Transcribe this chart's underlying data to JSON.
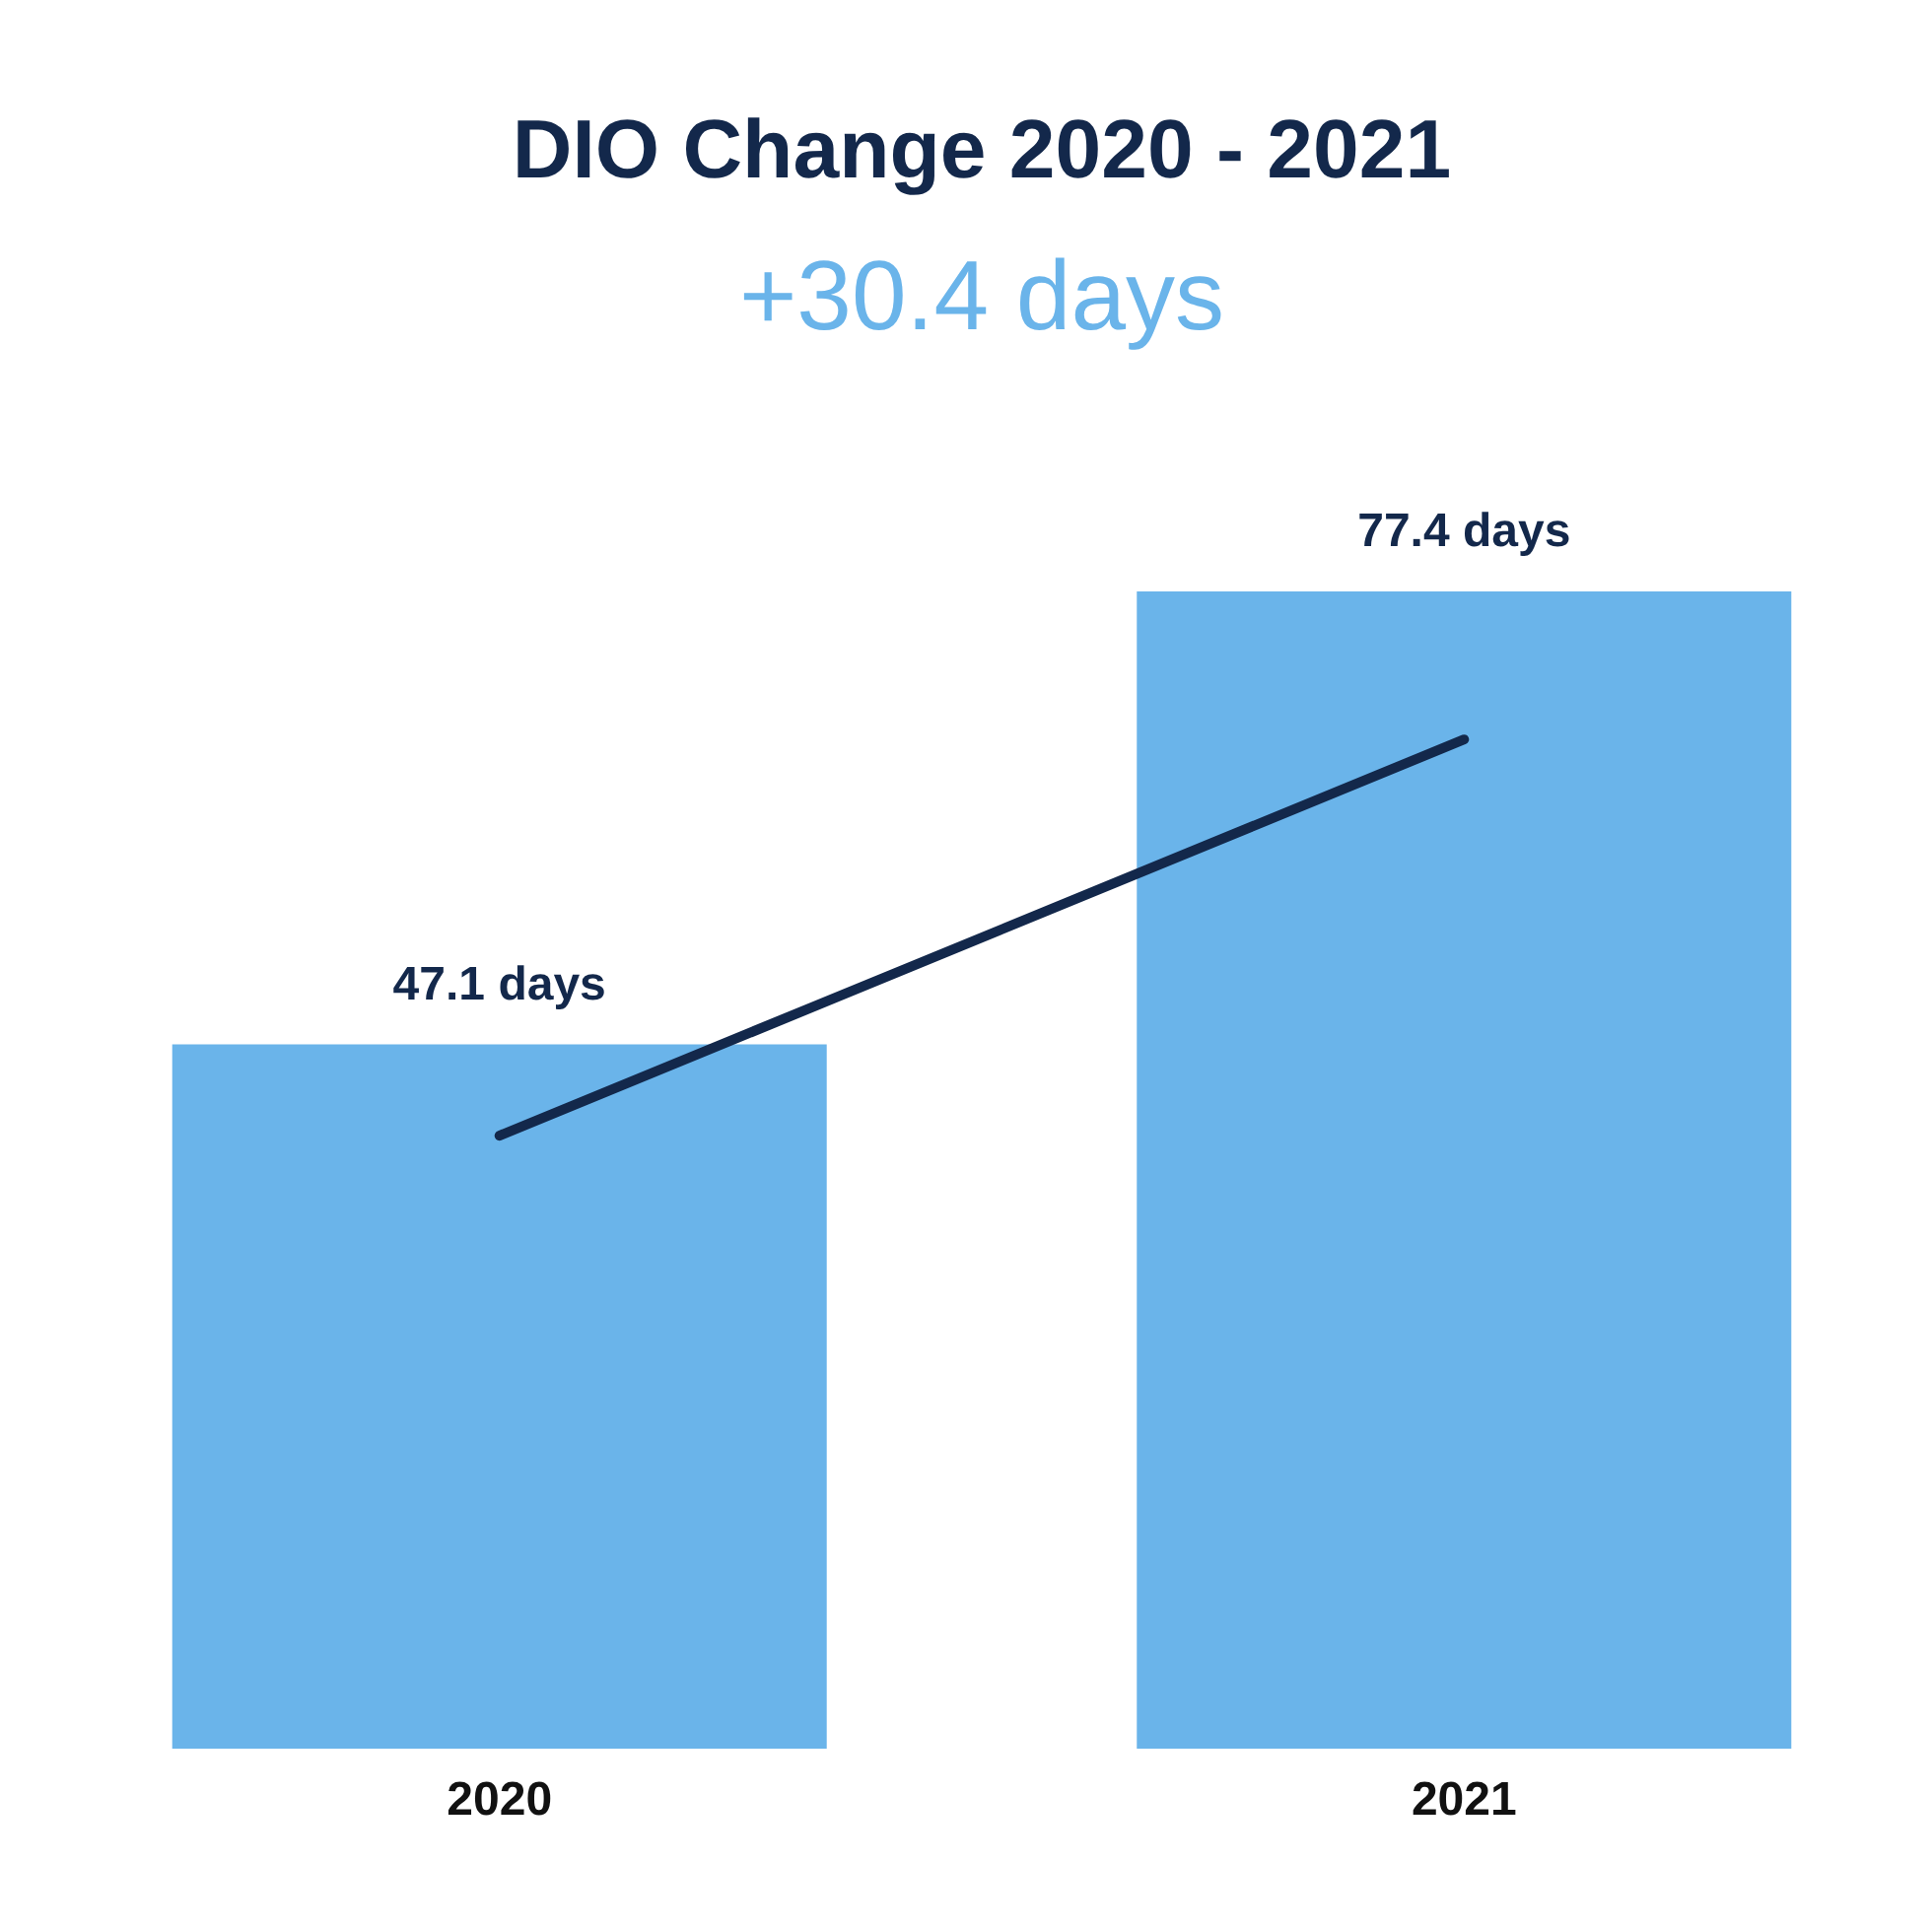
{
  "chart_data": {
    "type": "bar",
    "title": "DIO Change 2020 - 2021",
    "subtitle": "+30.4 days",
    "categories": [
      "2020",
      "2021"
    ],
    "series": [
      {
        "color": "#6ab4ea",
        "values": [
          47.1,
          77.4
        ],
        "value_labels": [
          "47.1 days",
          "77.4 days"
        ]
      },
      {
        "type": "line",
        "color": "#13284b",
        "values": [
          41.0,
          67.5
        ]
      }
    ],
    "tick_labels": "x",
    "grid": false
  }
}
